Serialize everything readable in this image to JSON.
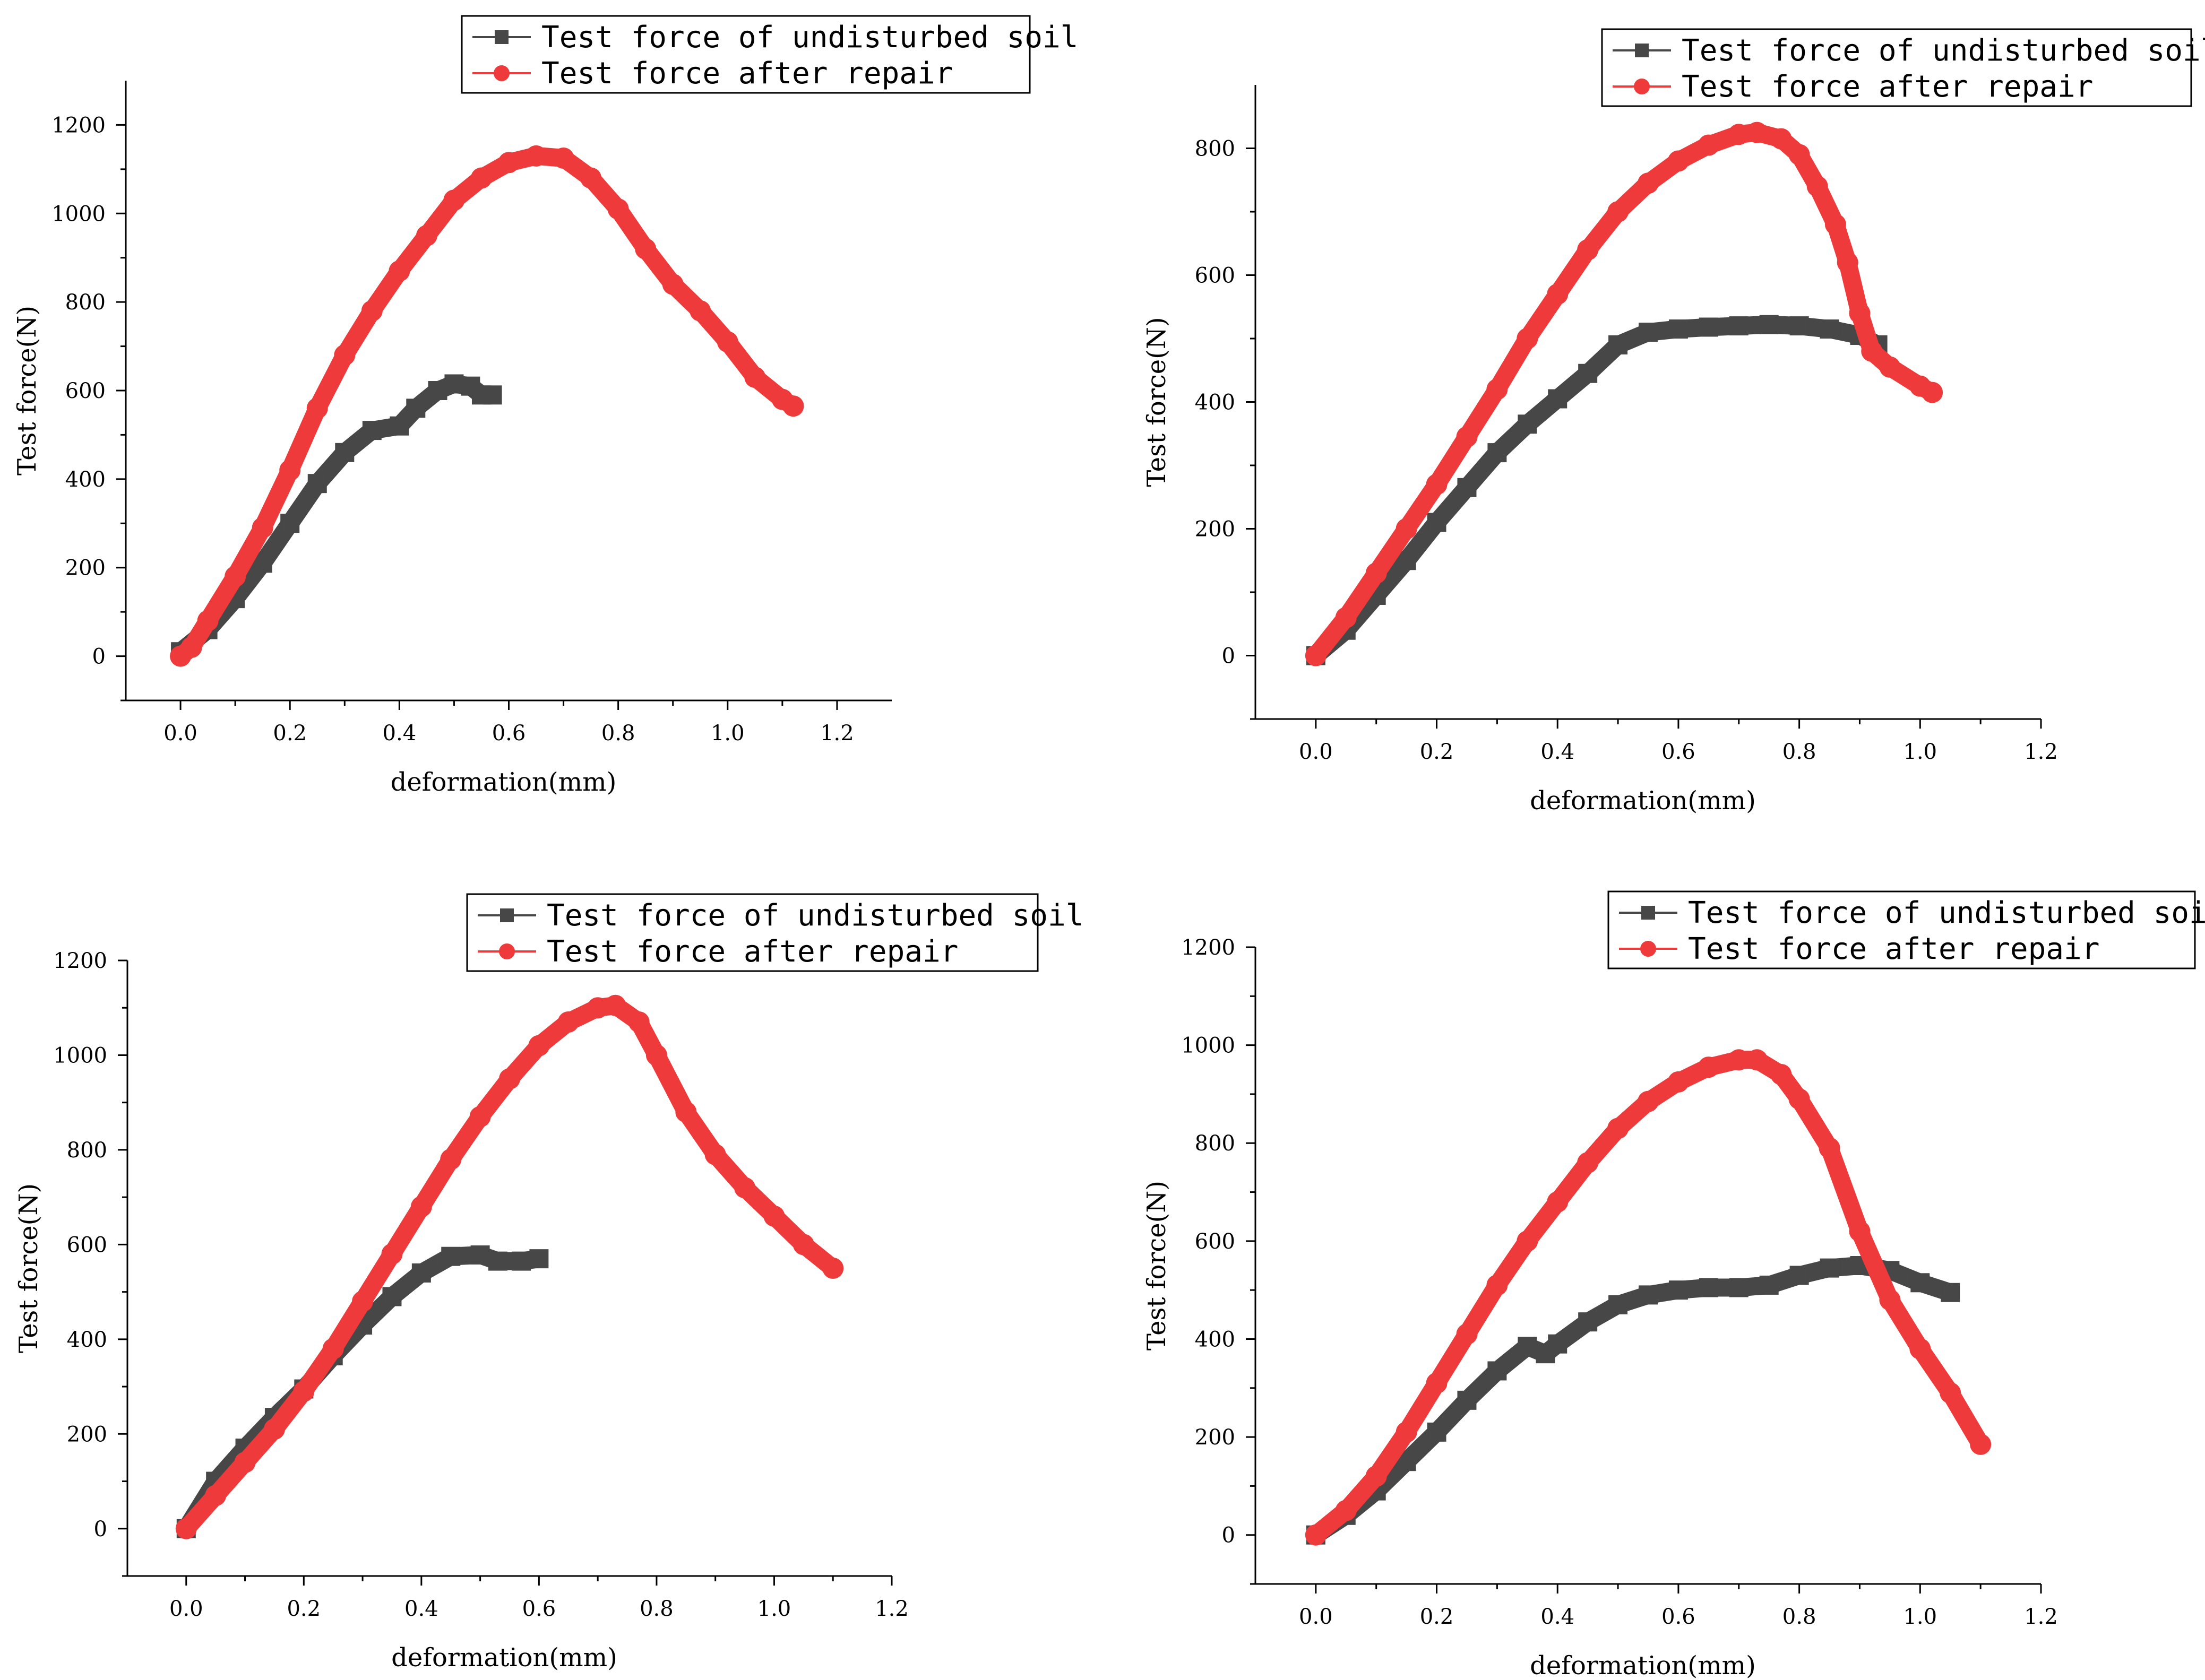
{
  "colors": {
    "undisturbed": "#474747",
    "repair": "#EE3A3A"
  },
  "chart_data": [
    {
      "type": "line",
      "title": "",
      "xlabel": "deformation(mm)",
      "ylabel": "Test force(N)",
      "xlim": [
        -0.1,
        1.3
      ],
      "ylim": [
        -100,
        1300
      ],
      "xticks": [
        "0.0",
        "0.2",
        "0.4",
        "0.6",
        "0.8",
        "1.0",
        "1.2"
      ],
      "yticks": [
        "0",
        "200",
        "400",
        "600",
        "800",
        "1000",
        "1200"
      ],
      "legend": "top-right",
      "series": [
        {
          "name": "Test force of undisturbed soil",
          "marker": "square",
          "x": [
            0,
            0.05,
            0.1,
            0.15,
            0.2,
            0.25,
            0.3,
            0.35,
            0.4,
            0.43,
            0.47,
            0.5,
            0.53,
            0.55,
            0.57
          ],
          "y": [
            10,
            60,
            130,
            210,
            300,
            390,
            460,
            510,
            520,
            560,
            600,
            615,
            610,
            590,
            590
          ]
        },
        {
          "name": "Test force after repair",
          "marker": "circle",
          "x": [
            0,
            0.02,
            0.05,
            0.1,
            0.15,
            0.2,
            0.25,
            0.3,
            0.35,
            0.4,
            0.45,
            0.5,
            0.55,
            0.6,
            0.65,
            0.7,
            0.75,
            0.8,
            0.85,
            0.9,
            0.95,
            1.0,
            1.05,
            1.1,
            1.12
          ],
          "y": [
            0,
            20,
            80,
            180,
            290,
            420,
            560,
            680,
            780,
            870,
            950,
            1030,
            1080,
            1115,
            1130,
            1125,
            1080,
            1010,
            920,
            840,
            780,
            710,
            630,
            580,
            565
          ]
        }
      ]
    },
    {
      "type": "line",
      "title": "",
      "xlabel": "deformation(mm)",
      "ylabel": "Test force(N)",
      "xlim": [
        -0.1,
        1.2
      ],
      "ylim": [
        -100,
        900
      ],
      "xticks": [
        "0.0",
        "0.2",
        "0.4",
        "0.6",
        "0.8",
        "1.0",
        "1.2"
      ],
      "yticks": [
        "0",
        "200",
        "400",
        "600",
        "800"
      ],
      "legend": "top-right",
      "series": [
        {
          "name": "Test force of undisturbed soil",
          "marker": "square",
          "x": [
            0,
            0.05,
            0.1,
            0.15,
            0.2,
            0.25,
            0.3,
            0.35,
            0.4,
            0.45,
            0.5,
            0.55,
            0.6,
            0.65,
            0.7,
            0.75,
            0.8,
            0.85,
            0.9,
            0.93
          ],
          "y": [
            0,
            40,
            95,
            150,
            210,
            265,
            320,
            365,
            405,
            445,
            490,
            510,
            515,
            518,
            520,
            522,
            520,
            515,
            505,
            490
          ]
        },
        {
          "name": "Test force after repair",
          "marker": "circle",
          "x": [
            0,
            0.05,
            0.1,
            0.15,
            0.2,
            0.25,
            0.3,
            0.35,
            0.4,
            0.45,
            0.5,
            0.55,
            0.6,
            0.65,
            0.7,
            0.73,
            0.77,
            0.8,
            0.83,
            0.86,
            0.88,
            0.9,
            0.92,
            0.95,
            1.0,
            1.02
          ],
          "y": [
            0,
            60,
            130,
            200,
            270,
            345,
            420,
            500,
            570,
            640,
            700,
            745,
            780,
            805,
            822,
            825,
            815,
            790,
            740,
            680,
            620,
            540,
            480,
            455,
            425,
            415
          ]
        }
      ]
    },
    {
      "type": "line",
      "title": "",
      "xlabel": "deformation(mm)",
      "ylabel": "Test force(N)",
      "xlim": [
        -0.1,
        1.2
      ],
      "ylim": [
        -100,
        1200
      ],
      "xticks": [
        "0.0",
        "0.2",
        "0.4",
        "0.6",
        "0.8",
        "1.0",
        "1.2"
      ],
      "yticks": [
        "0",
        "200",
        "400",
        "600",
        "800",
        "1000",
        "1200"
      ],
      "legend": "top-right",
      "series": [
        {
          "name": "Test force of undisturbed soil",
          "marker": "square",
          "x": [
            0,
            0.05,
            0.1,
            0.15,
            0.2,
            0.25,
            0.3,
            0.35,
            0.4,
            0.45,
            0.5,
            0.53,
            0.57,
            0.6
          ],
          "y": [
            0,
            100,
            170,
            235,
            295,
            365,
            430,
            490,
            540,
            575,
            578,
            565,
            565,
            570
          ]
        },
        {
          "name": "Test force after repair",
          "marker": "circle",
          "x": [
            0,
            0.05,
            0.1,
            0.15,
            0.2,
            0.25,
            0.3,
            0.35,
            0.4,
            0.45,
            0.5,
            0.55,
            0.6,
            0.65,
            0.7,
            0.73,
            0.77,
            0.8,
            0.85,
            0.9,
            0.95,
            1.0,
            1.05,
            1.1
          ],
          "y": [
            0,
            70,
            140,
            210,
            290,
            380,
            480,
            580,
            680,
            780,
            870,
            950,
            1020,
            1070,
            1100,
            1105,
            1070,
            1000,
            880,
            790,
            720,
            660,
            600,
            550
          ]
        }
      ]
    },
    {
      "type": "line",
      "title": "",
      "xlabel": "deformation(mm)",
      "ylabel": "Test force(N)",
      "xlim": [
        -0.1,
        1.2
      ],
      "ylim": [
        -100,
        1200
      ],
      "xticks": [
        "0.0",
        "0.2",
        "0.4",
        "0.6",
        "0.8",
        "1.0",
        "1.2"
      ],
      "yticks": [
        "0",
        "200",
        "400",
        "600",
        "800",
        "1000",
        "1200"
      ],
      "legend": "top-right",
      "series": [
        {
          "name": "Test force of undisturbed soil",
          "marker": "square",
          "x": [
            0,
            0.05,
            0.1,
            0.15,
            0.2,
            0.25,
            0.3,
            0.35,
            0.38,
            0.4,
            0.45,
            0.5,
            0.55,
            0.6,
            0.65,
            0.7,
            0.75,
            0.8,
            0.85,
            0.9,
            0.95,
            1.0,
            1.05
          ],
          "y": [
            0,
            40,
            90,
            150,
            210,
            275,
            335,
            385,
            370,
            390,
            435,
            470,
            490,
            500,
            505,
            505,
            510,
            530,
            545,
            550,
            540,
            515,
            495
          ]
        },
        {
          "name": "Test force after repair",
          "marker": "circle",
          "x": [
            0,
            0.05,
            0.1,
            0.15,
            0.2,
            0.25,
            0.3,
            0.35,
            0.4,
            0.45,
            0.5,
            0.55,
            0.6,
            0.65,
            0.7,
            0.73,
            0.77,
            0.8,
            0.85,
            0.9,
            0.95,
            1.0,
            1.05,
            1.1
          ],
          "y": [
            0,
            50,
            120,
            210,
            310,
            410,
            510,
            600,
            680,
            760,
            830,
            885,
            925,
            955,
            970,
            970,
            940,
            890,
            790,
            620,
            480,
            380,
            290,
            185
          ]
        }
      ]
    }
  ]
}
